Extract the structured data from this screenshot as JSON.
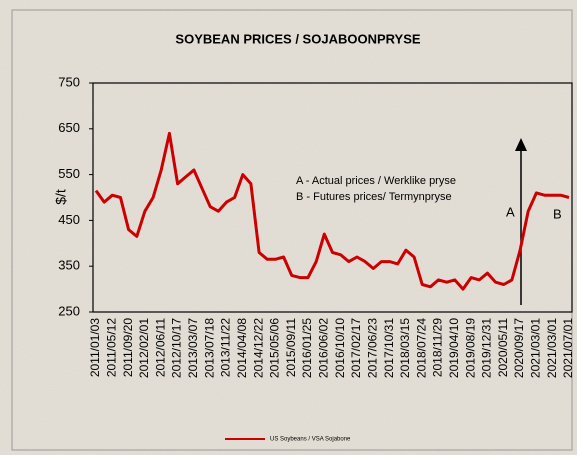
{
  "chart_data": {
    "type": "line",
    "title": "SOYBEAN PRICES / SOJABOONPRYSE",
    "y_label": "$/t",
    "categories": [
      "2011/01/03",
      null,
      "2011/05/12",
      null,
      "2011/09/20",
      null,
      "2012/02/01",
      null,
      "2012/06/11",
      null,
      "2012/10/17",
      null,
      "2013/03/07",
      null,
      "2013/07/18",
      null,
      "2013/11/22",
      null,
      "2014/04/08",
      null,
      "2014/12/22",
      null,
      "2015/05/06",
      null,
      "2015/09/11",
      null,
      "2016/01/25",
      null,
      "2016/06/02",
      null,
      "2016/10/10",
      null,
      "2017/02/17",
      null,
      "2017/06/23",
      null,
      "2017/10/31",
      null,
      "2018/03/15",
      null,
      "2018/07/24",
      null,
      "2018/11/29",
      null,
      "2019/04/10",
      null,
      "2019/08/19",
      null,
      "2019/12/31",
      null,
      "2020/05/11",
      null,
      "2020/09/17",
      null,
      "2021/03/01",
      null,
      "2021/03/01",
      null,
      "2021/07/01"
    ],
    "series": [
      {
        "name": "US Soybeans / VSA Sojabone",
        "color": "#cc0000",
        "values": [
          515,
          490,
          505,
          500,
          430,
          415,
          470,
          500,
          560,
          640,
          530,
          545,
          560,
          520,
          480,
          470,
          490,
          500,
          550,
          530,
          380,
          365,
          365,
          370,
          330,
          325,
          325,
          360,
          420,
          380,
          375,
          360,
          370,
          360,
          345,
          360,
          360,
          355,
          385,
          370,
          310,
          305,
          320,
          315,
          320,
          300,
          325,
          320,
          335,
          315,
          310,
          320,
          385,
          470,
          510,
          505,
          505,
          505,
          500
        ]
      }
    ],
    "ylim": [
      250,
      750
    ],
    "yticks": [
      250,
      350,
      450,
      550,
      650,
      750
    ],
    "annotations": [
      "A - Actual prices / Werklike pryse",
      "B - Futures prices/ Termynpryse",
      "A",
      "B"
    ],
    "legend": "bottom"
  }
}
